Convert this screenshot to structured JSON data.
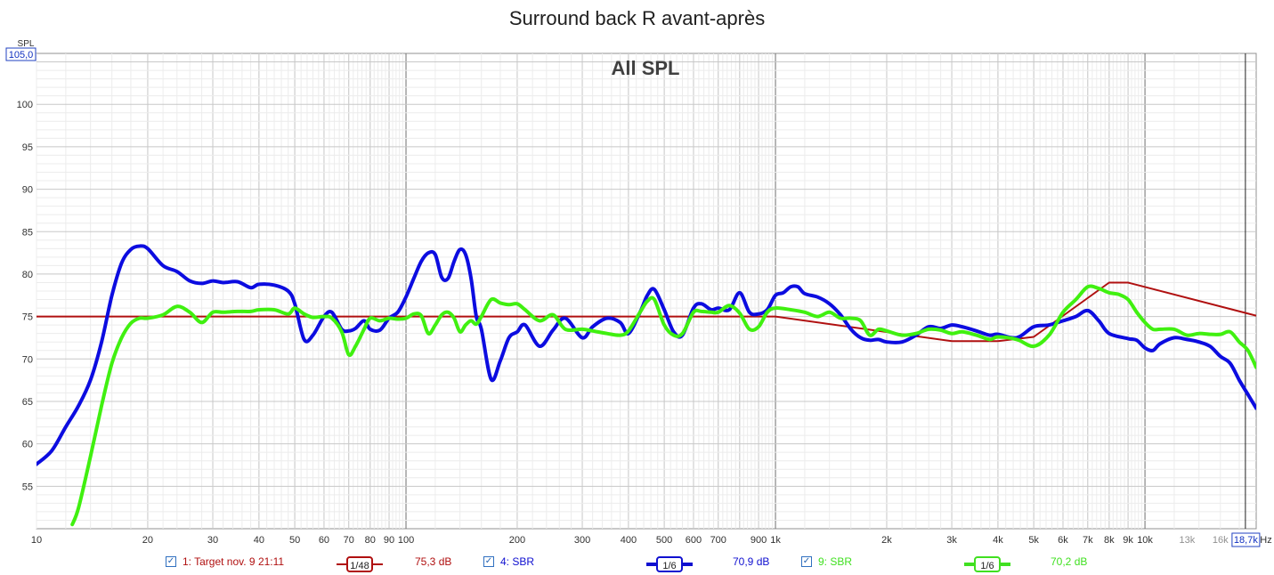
{
  "chart_data": {
    "type": "line",
    "title": "Surround back R avant-après",
    "watermark": "All SPL",
    "ylabel": "SPL",
    "xlabel_unit": "Hz",
    "x_scale": "log",
    "xlim": [
      10,
      20000
    ],
    "ylim": [
      50,
      106
    ],
    "y_top_box": "105,0",
    "x_cursor_box": "18,7k",
    "y_ticks": [
      {
        "v": 100,
        "label": "100"
      },
      {
        "v": 95,
        "label": "95"
      },
      {
        "v": 90,
        "label": "90"
      },
      {
        "v": 85,
        "label": "85"
      },
      {
        "v": 80,
        "label": "80"
      },
      {
        "v": 75,
        "label": "75"
      },
      {
        "v": 70,
        "label": "70"
      },
      {
        "v": 65,
        "label": "65"
      },
      {
        "v": 60,
        "label": "60"
      },
      {
        "v": 55,
        "label": "55"
      }
    ],
    "x_ticks": [
      {
        "v": 10,
        "label": "10"
      },
      {
        "v": 20,
        "label": "20"
      },
      {
        "v": 30,
        "label": "30"
      },
      {
        "v": 40,
        "label": "40"
      },
      {
        "v": 50,
        "label": "50"
      },
      {
        "v": 60,
        "label": "60"
      },
      {
        "v": 70,
        "label": "70"
      },
      {
        "v": 80,
        "label": "80"
      },
      {
        "v": 90,
        "label": "90"
      },
      {
        "v": 100,
        "label": "100"
      },
      {
        "v": 200,
        "label": "200"
      },
      {
        "v": 300,
        "label": "300"
      },
      {
        "v": 400,
        "label": "400"
      },
      {
        "v": 500,
        "label": "500"
      },
      {
        "v": 600,
        "label": "600"
      },
      {
        "v": 700,
        "label": "700"
      },
      {
        "v": 900,
        "label": "900"
      },
      {
        "v": 1000,
        "label": "1k"
      },
      {
        "v": 2000,
        "label": "2k"
      },
      {
        "v": 3000,
        "label": "3k"
      },
      {
        "v": 4000,
        "label": "4k"
      },
      {
        "v": 5000,
        "label": "5k"
      },
      {
        "v": 6000,
        "label": "6k"
      },
      {
        "v": 7000,
        "label": "7k"
      },
      {
        "v": 8000,
        "label": "8k"
      },
      {
        "v": 9000,
        "label": "9k"
      },
      {
        "v": 10000,
        "label": "10k"
      },
      {
        "v": 13000,
        "label": "13k",
        "faded": true
      },
      {
        "v": 16000,
        "label": "16k",
        "faded": true
      }
    ],
    "series": [
      {
        "name": "1: Target nov. 9 21:11",
        "smoothing": "1/48",
        "level": "75,3 dB",
        "color": "#b01010",
        "width": 2,
        "x": [
          10,
          1000,
          3000,
          4000,
          5000,
          8000,
          9000,
          20000
        ],
        "y": [
          75,
          75,
          72.1,
          72.1,
          72.6,
          79,
          79,
          75.1
        ]
      },
      {
        "name": "4: SBR",
        "smoothing": "1/6",
        "level": "70,9 dB",
        "color": "#0c0ce0",
        "width": 4,
        "x": [
          10,
          11,
          12,
          13,
          14,
          15,
          16,
          17,
          18,
          19,
          20,
          22,
          24,
          26,
          28,
          30,
          32,
          35,
          38,
          40,
          44,
          48,
          50,
          53,
          56,
          60,
          63,
          67,
          70,
          73,
          77,
          80,
          85,
          90,
          95,
          100,
          105,
          110,
          115,
          120,
          125,
          130,
          135,
          140,
          145,
          150,
          155,
          160,
          170,
          180,
          190,
          200,
          210,
          230,
          250,
          270,
          300,
          320,
          350,
          380,
          400,
          430,
          450,
          470,
          500,
          530,
          560,
          600,
          630,
          670,
          700,
          750,
          800,
          850,
          900,
          950,
          1000,
          1050,
          1100,
          1150,
          1200,
          1300,
          1400,
          1500,
          1600,
          1700,
          1800,
          1900,
          2000,
          2200,
          2400,
          2600,
          2800,
          3000,
          3200,
          3500,
          3800,
          4000,
          4500,
          5000,
          5500,
          6000,
          6500,
          7000,
          7500,
          8000,
          9000,
          9500,
          10000,
          10500,
          11000,
          12000,
          13000,
          14000,
          15000,
          16000,
          17000,
          18000,
          19000,
          20000
        ],
        "y": [
          57.6,
          59.2,
          62.0,
          64.5,
          67.5,
          72.0,
          77.5,
          81.3,
          82.9,
          83.3,
          83.0,
          81.0,
          80.3,
          79.2,
          78.9,
          79.2,
          79.0,
          79.1,
          78.4,
          78.8,
          78.7,
          78.0,
          76.5,
          72.3,
          72.8,
          75.0,
          75.5,
          73.5,
          73.3,
          73.6,
          74.5,
          73.5,
          73.4,
          74.8,
          75.5,
          77.3,
          79.5,
          81.5,
          82.5,
          82.3,
          79.6,
          79.5,
          81.5,
          82.9,
          82.3,
          79.5,
          75.0,
          73.5,
          67.6,
          69.8,
          72.5,
          73.2,
          74.0,
          71.5,
          73.4,
          74.8,
          72.5,
          73.8,
          74.8,
          74.3,
          73.0,
          75.5,
          77.5,
          78.2,
          75.8,
          73.2,
          72.8,
          76.0,
          76.5,
          75.8,
          76.0,
          75.8,
          77.8,
          75.5,
          75.3,
          75.8,
          77.5,
          77.8,
          78.5,
          78.5,
          77.7,
          77.3,
          76.5,
          75.2,
          73.5,
          72.5,
          72.2,
          72.3,
          72.0,
          72.0,
          72.8,
          73.8,
          73.6,
          74.0,
          73.8,
          73.3,
          72.8,
          72.9,
          72.5,
          73.8,
          74.0,
          74.5,
          75.0,
          75.7,
          74.5,
          73.0,
          72.4,
          72.2,
          71.3,
          71.0,
          71.8,
          72.5,
          72.3,
          72.0,
          71.5,
          70.3,
          69.5,
          67.5,
          65.8,
          64.2
        ]
      },
      {
        "name": "9: SBR",
        "smoothing": "1/6",
        "level": "70,2 dB",
        "color": "#40f010",
        "width": 4,
        "x": [
          12.5,
          13,
          14,
          15,
          16,
          17,
          18,
          19,
          20,
          22,
          24,
          26,
          28,
          30,
          32,
          35,
          38,
          40,
          44,
          48,
          50,
          53,
          56,
          60,
          63,
          67,
          70,
          73,
          77,
          80,
          85,
          90,
          95,
          100,
          105,
          110,
          115,
          120,
          125,
          130,
          135,
          140,
          145,
          150,
          155,
          160,
          170,
          180,
          190,
          200,
          210,
          230,
          250,
          270,
          300,
          320,
          350,
          380,
          400,
          430,
          450,
          470,
          500,
          530,
          560,
          600,
          630,
          670,
          700,
          750,
          800,
          850,
          900,
          950,
          1000,
          1100,
          1200,
          1300,
          1400,
          1500,
          1600,
          1700,
          1800,
          1900,
          2000,
          2200,
          2400,
          2600,
          2800,
          3000,
          3200,
          3500,
          3800,
          4000,
          4500,
          5000,
          5500,
          6000,
          6500,
          7000,
          7500,
          8000,
          8500,
          9000,
          9500,
          10000,
          10500,
          11000,
          12000,
          13000,
          14000,
          15000,
          16000,
          17000,
          18000,
          19000,
          20000
        ],
        "y": [
          50.5,
          52.5,
          58.5,
          64.5,
          69.5,
          72.5,
          74.2,
          74.8,
          74.8,
          75.2,
          76.2,
          75.5,
          74.3,
          75.5,
          75.5,
          75.6,
          75.6,
          75.8,
          75.8,
          75.3,
          76.0,
          75.3,
          74.9,
          75.0,
          74.8,
          73.2,
          70.5,
          71.5,
          73.5,
          74.8,
          74.5,
          74.8,
          74.7,
          74.8,
          75.3,
          75.1,
          73.0,
          74.0,
          75.2,
          75.5,
          74.8,
          73.2,
          74.0,
          74.5,
          74.1,
          75.0,
          77.0,
          76.6,
          76.4,
          76.5,
          75.8,
          74.5,
          75.2,
          73.5,
          73.5,
          73.3,
          73.0,
          72.8,
          73.3,
          75.5,
          76.8,
          77.0,
          74.0,
          72.8,
          73.0,
          75.5,
          75.6,
          75.5,
          75.5,
          76.3,
          75.4,
          73.5,
          73.8,
          75.5,
          76.0,
          75.8,
          75.5,
          75.0,
          75.5,
          74.8,
          74.8,
          74.5,
          72.8,
          73.5,
          73.3,
          72.8,
          73.0,
          73.5,
          73.4,
          73.0,
          73.2,
          72.8,
          72.3,
          72.6,
          72.3,
          71.5,
          72.8,
          75.5,
          77.0,
          78.5,
          78.3,
          77.8,
          77.6,
          77.0,
          75.5,
          74.3,
          73.5,
          73.5,
          73.5,
          72.8,
          73.0,
          72.9,
          72.9,
          73.2,
          72.0,
          71.0,
          69.0
        ]
      }
    ]
  },
  "legend": [
    {
      "label": "1: Target nov. 9 21:11",
      "smoothing": "1/48",
      "level": "75,3 dB",
      "color": "#b01010"
    },
    {
      "label": "4: SBR",
      "smoothing": "1/6",
      "level": "70,9 dB",
      "color": "#1010d0"
    },
    {
      "label": "9: SBR",
      "smoothing": "1/6",
      "level": "70,2 dB",
      "color": "#40e020"
    }
  ]
}
